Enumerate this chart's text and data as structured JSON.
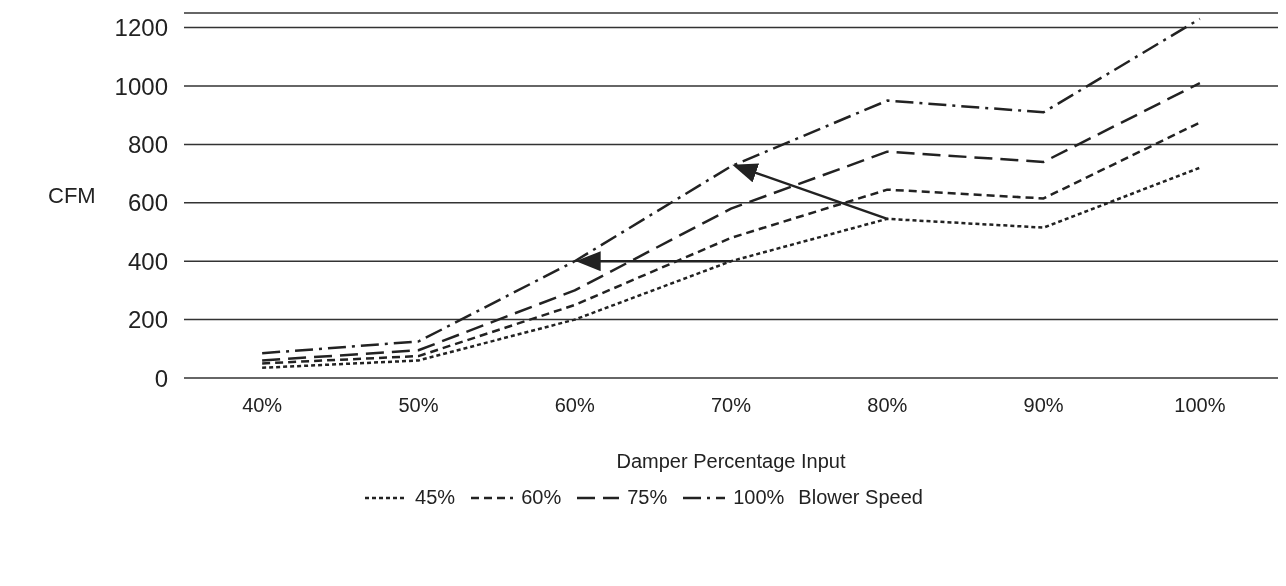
{
  "chart_data": {
    "type": "line",
    "xlabel": "Damper Percentage Input",
    "ylabel": "CFM",
    "legend_title": "Blower Speed",
    "categories": [
      "40%",
      "50%",
      "60%",
      "70%",
      "80%",
      "90%",
      "100%"
    ],
    "series": [
      {
        "name": "45%",
        "color": "#222222",
        "line_style": "dotted",
        "values": [
          35,
          60,
          200,
          400,
          545,
          515,
          720
        ]
      },
      {
        "name": "60%",
        "color": "#222222",
        "line_style": "dashed",
        "values": [
          50,
          75,
          250,
          480,
          645,
          615,
          875
        ]
      },
      {
        "name": "75%",
        "color": "#222222",
        "line_style": "longdash",
        "values": [
          60,
          95,
          300,
          580,
          775,
          740,
          1010
        ]
      },
      {
        "name": "100%",
        "color": "#222222",
        "line_style": "dashdot",
        "values": [
          85,
          125,
          400,
          725,
          950,
          910,
          1230
        ]
      }
    ],
    "ylim": [
      0,
      1250
    ],
    "yticks": [
      0,
      200,
      400,
      600,
      800,
      1000,
      1200
    ],
    "grid": "y",
    "legend": "bottom",
    "marker": "none"
  }
}
